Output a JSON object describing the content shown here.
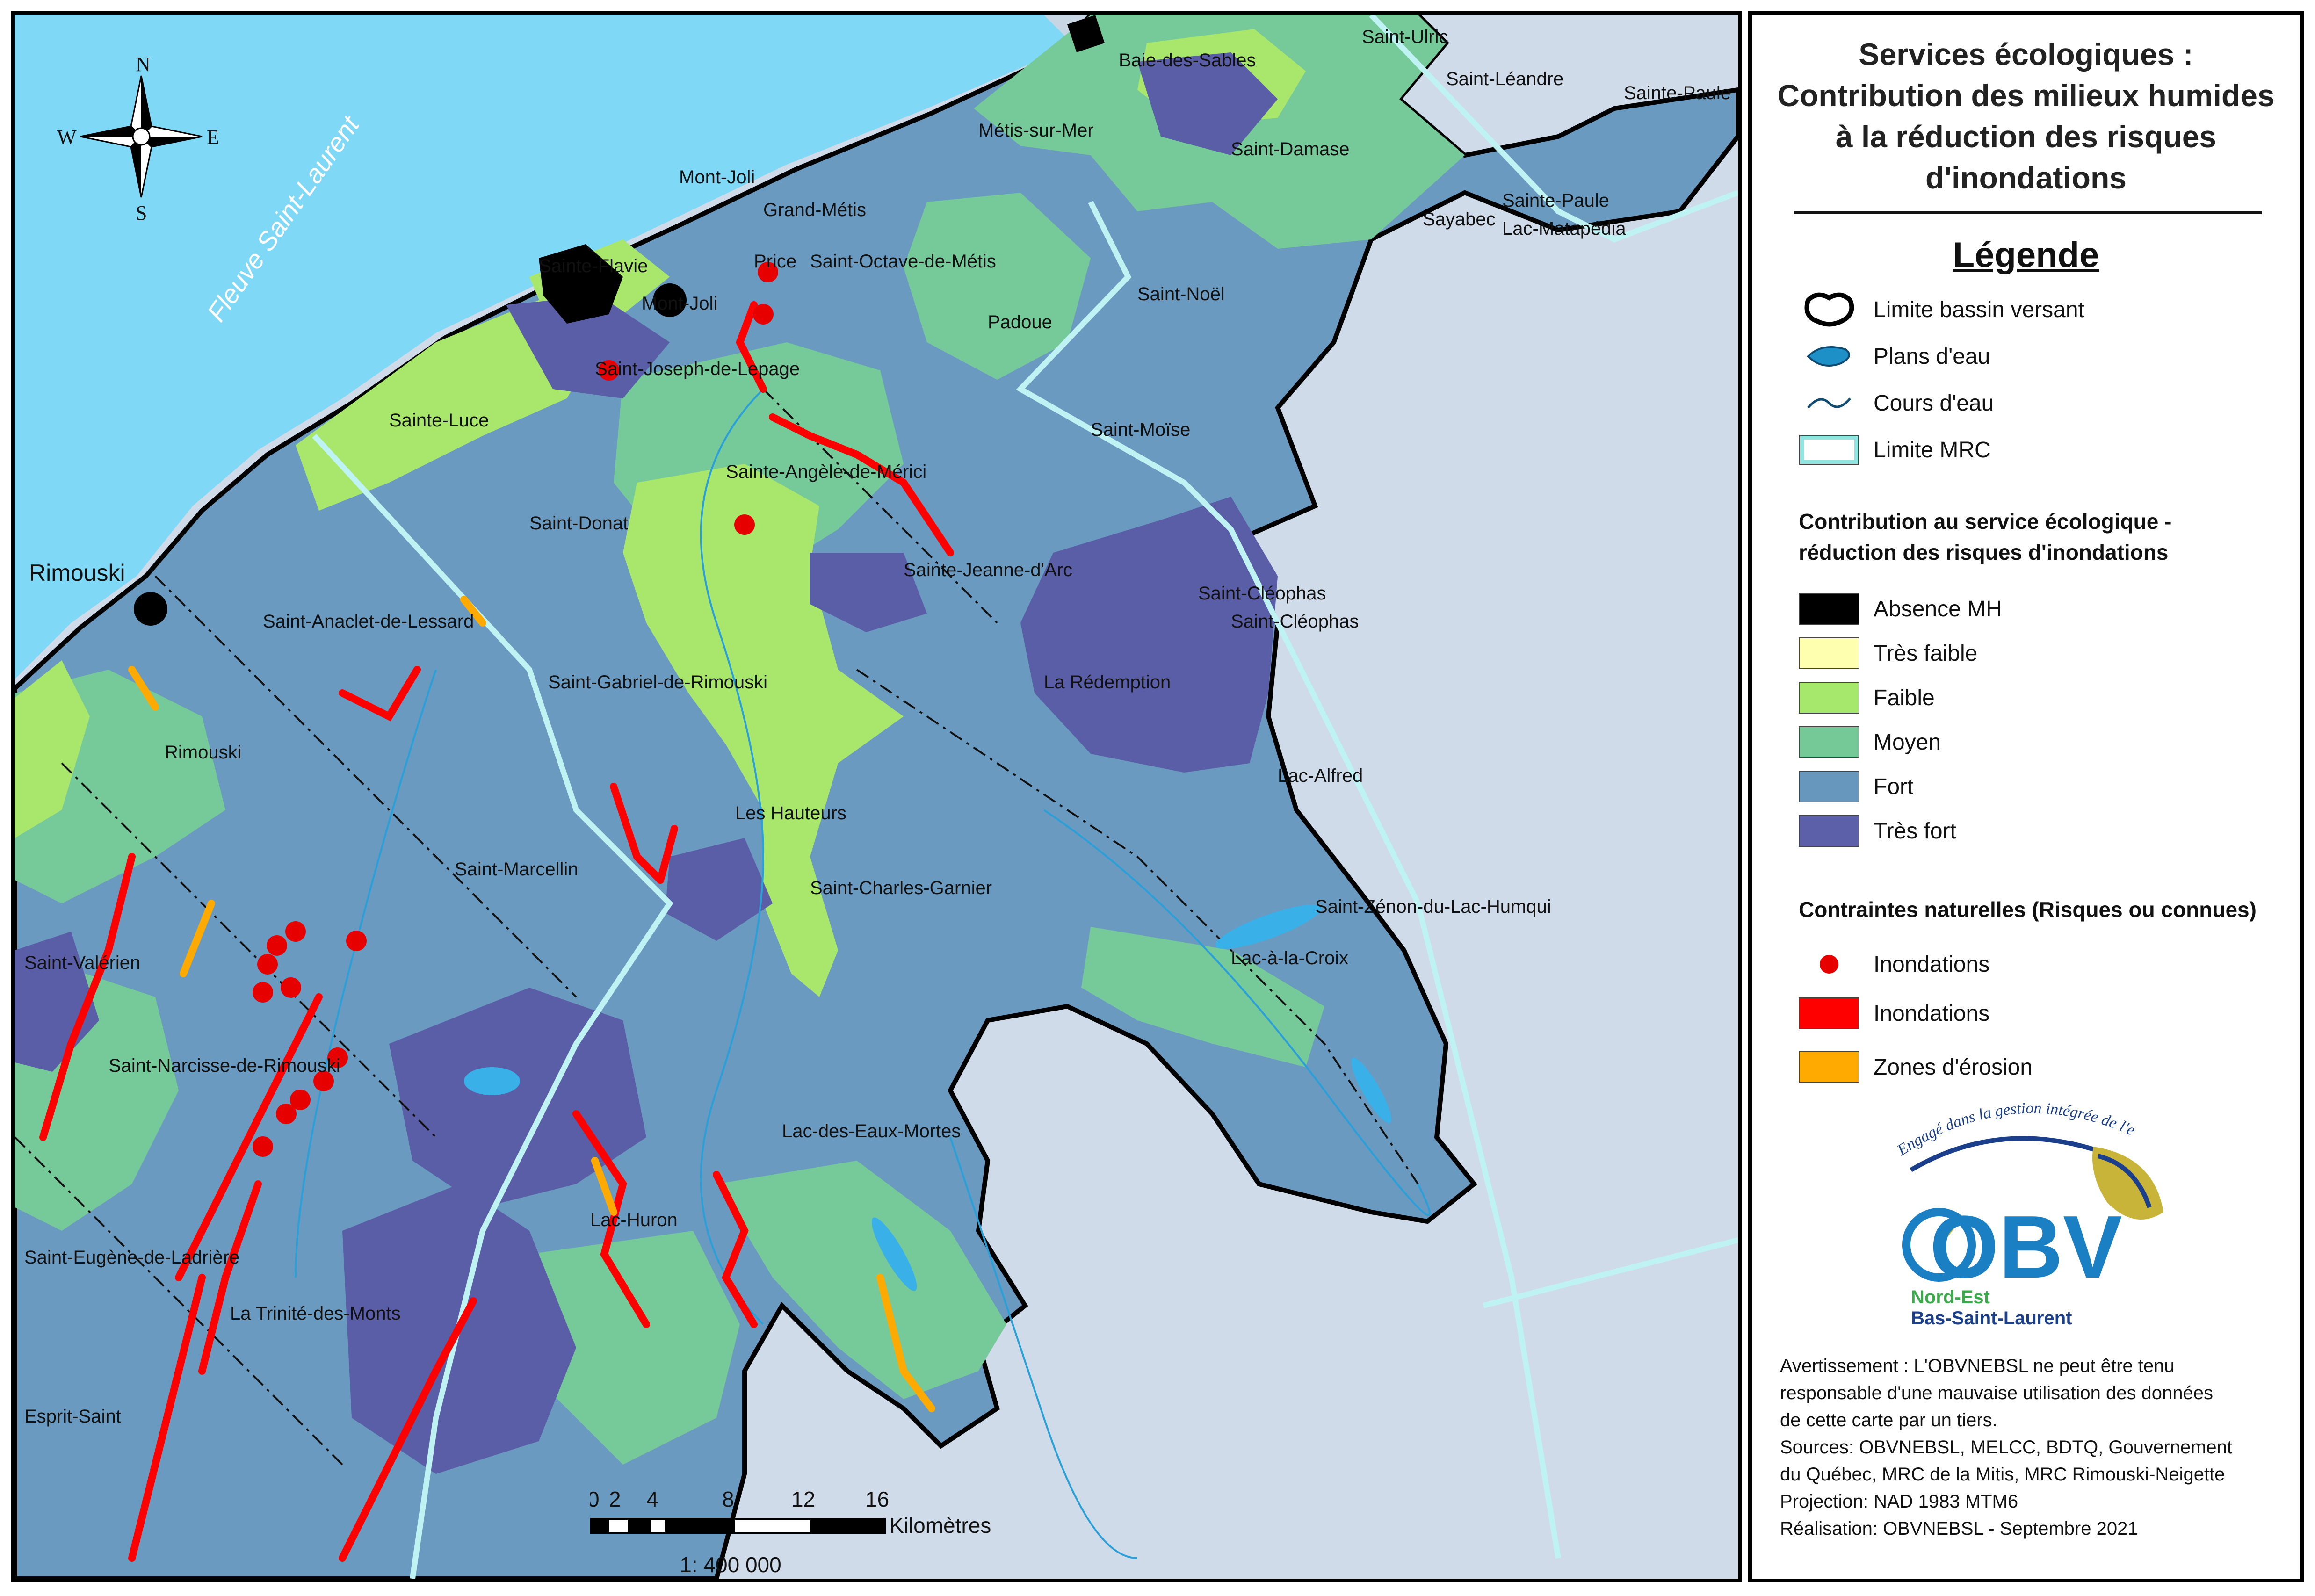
{
  "map": {
    "river_label": "Fleuve Saint-Laurent",
    "compass": {
      "n": "N",
      "s": "S",
      "e": "E",
      "w": "W"
    },
    "cities": [
      {
        "name": "Rimouski"
      }
    ],
    "places": [
      "Saint-Ulric",
      "Baie-des-Sables",
      "Saint-Léandre",
      "Sainte-Paule",
      "Métis-sur-Mer",
      "Saint-Damase",
      "Mont-Joli",
      "Grand-Métis",
      "Sainte-Paule",
      "Lac-Matapédia",
      "Sayabec",
      "Sainte-Flavie",
      "Price",
      "Saint-Octave-de-Métis",
      "Mont-Joli",
      "Saint-Noël",
      "Padoue",
      "Saint-Joseph-de-Lepage",
      "Sainte-Luce",
      "Saint-Moïse",
      "Sainte-Angèle-de-Mérici",
      "Saint-Donat",
      "Sainte-Jeanne-d'Arc",
      "Saint-Cléophas",
      "Saint-Cléophas",
      "Saint-Anaclet-de-Lessard",
      "Saint-Gabriel-de-Rimouski",
      "La Rédemption",
      "Rimouski",
      "Lac-Alfred",
      "Les Hauteurs",
      "Saint-Marcellin",
      "Saint-Charles-Garnier",
      "Saint-Zénon-du-Lac-Humqui",
      "Saint-Valérien",
      "Lac-à-la-Croix",
      "Saint-Narcisse-de-Rimouski",
      "Lac-des-Eaux-Mortes",
      "Lac-Huron",
      "Saint-Eugène-de-Ladrière",
      "La Trinité-des-Monts",
      "Esprit-Saint"
    ],
    "scale": {
      "ticks": [
        "0",
        "2",
        "4",
        "8",
        "12",
        "16"
      ],
      "unit": "Kilomètres",
      "ratio": "1: 400 000"
    }
  },
  "legend": {
    "title_lines": [
      "Services écologiques :",
      "Contribution des milieux humides",
      "à la réduction des risques",
      "d'inondations"
    ],
    "heading": "Légende",
    "base_items": [
      {
        "label": "Limite bassin versant",
        "icon": "watershed-boundary"
      },
      {
        "label": "Plans d'eau",
        "icon": "water-body"
      },
      {
        "label": "Cours d'eau",
        "icon": "watercourse"
      },
      {
        "label": "Limite MRC",
        "icon": "mrc-boundary"
      }
    ],
    "contribution_heading": [
      "Contribution au service écologique -",
      "réduction des risques d'inondations"
    ],
    "classes": [
      {
        "label": "Absence MH",
        "color": "#000000"
      },
      {
        "label": "Très faible",
        "color": "#ffffb0"
      },
      {
        "label": "Faible",
        "color": "#a6e86b"
      },
      {
        "label": "Moyen",
        "color": "#74c996"
      },
      {
        "label": "Fort",
        "color": "#6897bd"
      },
      {
        "label": "Très fort",
        "color": "#5c60a8"
      }
    ],
    "constraints_heading": "Contraintes naturelles (Risques ou connues)",
    "constraints": [
      {
        "label": "Inondations",
        "icon": "flood-point",
        "color": "#e60000"
      },
      {
        "label": "Inondations",
        "icon": "flood-area",
        "color": "#ff0000"
      },
      {
        "label": "Zones d'érosion",
        "icon": "erosion-area",
        "color": "#ffaa00"
      }
    ],
    "logo": {
      "tagline": "Engagé dans la gestion intégrée de l'eau",
      "acronym": "OBV",
      "line1": "Nord-Est",
      "line2": "Bas-Saint-Laurent"
    },
    "notes": [
      "Avertissement : L'OBVNEBSL ne peut être tenu",
      "responsable d'une mauvaise utilisation des données",
      "de cette carte par un tiers.",
      "Sources: OBVNEBSL, MELCC, BDTQ, Gouvernement",
      "du Québec, MRC de la Mitis, MRC Rimouski-Neigette",
      "Projection: NAD 1983 MTM6",
      "Réalisation: OBVNEBSL - Septembre 2021"
    ]
  }
}
